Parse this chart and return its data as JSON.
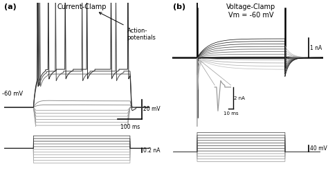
{
  "title_a": "Current-Clamp",
  "title_b": "Voltage-Clamp\nVm = -60 mV",
  "label_a": "(a)",
  "label_b": "(b)",
  "bg_color": "#ffffff",
  "annotation_ap": "Action-\npotentials",
  "label_60mv": "-60 mV",
  "scale_a_y_label": "20 mV",
  "scale_a_x_label": "100 ms",
  "scale_a_stim_label": "0.2 nA",
  "scale_b_y_label": "1 nA",
  "scale_b_inset_y_label": "2 nA",
  "scale_b_inset_x_label": "10 ms",
  "scale_b_stim_label": "40 mV"
}
